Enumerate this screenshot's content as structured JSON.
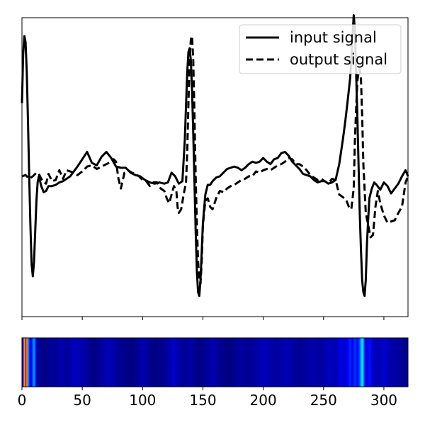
{
  "chart_data": [
    {
      "type": "line",
      "title": "",
      "xlabel": "",
      "ylabel": "",
      "xlim": [
        0,
        320
      ],
      "ylim": [
        -1.15,
        1.3
      ],
      "show_x_tick_labels": false,
      "show_y_ticks": false,
      "grid": false,
      "legend": {
        "placement": "top-right",
        "entries": [
          "input signal",
          "output signal"
        ]
      },
      "series": [
        {
          "name": "input signal",
          "style": "solid",
          "color": "#000000",
          "x": [
            0,
            1,
            2,
            3,
            4,
            5,
            6,
            7,
            8,
            9,
            10,
            11,
            12,
            13,
            14,
            16,
            18,
            20,
            22,
            25,
            28,
            31,
            34,
            37,
            40,
            43,
            46,
            50,
            54,
            58,
            62,
            66,
            70,
            74,
            78,
            82,
            86,
            90,
            94,
            98,
            102,
            106,
            110,
            114,
            118,
            121,
            124,
            127,
            130,
            133,
            135,
            136,
            137,
            138,
            139,
            140,
            141,
            142,
            143,
            144,
            145,
            146,
            147,
            148,
            149,
            150,
            152,
            154,
            156,
            158,
            161,
            164,
            167,
            170,
            173,
            176,
            179,
            182,
            185,
            188,
            191,
            194,
            197,
            200,
            203,
            206,
            209,
            212,
            215,
            218,
            221,
            224,
            227,
            230,
            233,
            236,
            239,
            242,
            245,
            248,
            251,
            254,
            257,
            260,
            263,
            266,
            268,
            270,
            272,
            273,
            274,
            275,
            276,
            277,
            278,
            279,
            280,
            281,
            282,
            283,
            284,
            285,
            286,
            287,
            288,
            290,
            292,
            294,
            297,
            300,
            303,
            306,
            309,
            312,
            315,
            318,
            320
          ],
          "y": [
            0.6,
            1.0,
            1.15,
            1.1,
            0.85,
            0.45,
            0.0,
            -0.4,
            -0.72,
            -0.82,
            -0.7,
            -0.45,
            -0.2,
            -0.05,
            0.0,
            -0.08,
            -0.13,
            -0.12,
            -0.08,
            -0.08,
            -0.07,
            -0.05,
            -0.04,
            -0.02,
            0.0,
            0.04,
            0.08,
            0.14,
            0.2,
            0.11,
            0.09,
            0.16,
            0.2,
            0.15,
            0.08,
            0.07,
            0.07,
            0.03,
            0.01,
            0.0,
            -0.03,
            -0.05,
            -0.06,
            -0.05,
            -0.06,
            -0.05,
            0.03,
            0.0,
            -0.06,
            -0.04,
            0.3,
            0.58,
            0.85,
            1.02,
            1.05,
            0.95,
            0.7,
            0.35,
            -0.05,
            -0.45,
            -0.78,
            -0.95,
            -0.98,
            -0.85,
            -0.62,
            -0.38,
            -0.15,
            -0.07,
            -0.07,
            -0.04,
            -0.01,
            0.0,
            0.03,
            0.06,
            0.07,
            0.08,
            0.07,
            0.05,
            0.07,
            0.1,
            0.12,
            0.11,
            0.12,
            0.15,
            0.12,
            0.1,
            0.14,
            0.15,
            0.19,
            0.2,
            0.17,
            0.12,
            0.09,
            0.06,
            0.02,
            0.01,
            0.0,
            -0.03,
            -0.05,
            -0.04,
            -0.04,
            -0.06,
            -0.05,
            -0.03,
            0.1,
            0.3,
            0.45,
            0.62,
            0.8,
            0.95,
            1.15,
            1.32,
            1.2,
            0.85,
            0.5,
            0.1,
            -0.3,
            -0.6,
            -0.85,
            -0.95,
            -0.98,
            -0.85,
            -0.55,
            -0.35,
            -0.18,
            -0.1,
            -0.05,
            -0.07,
            -0.11,
            -0.05,
            -0.08,
            -0.14,
            -0.1,
            -0.06,
            0.0,
            0.05,
            0.0
          ]
        },
        {
          "name": "output signal",
          "style": "dashed",
          "color": "#000000",
          "x": [
            0,
            3,
            6,
            9,
            12,
            14,
            16,
            18,
            20,
            22,
            25,
            28,
            31,
            34,
            37,
            40,
            43,
            46,
            50,
            54,
            58,
            62,
            66,
            70,
            74,
            76,
            78,
            80,
            82,
            85,
            88,
            91,
            94,
            97,
            100,
            103,
            106,
            109,
            112,
            115,
            118,
            120,
            122,
            124,
            126,
            128,
            129,
            130,
            132,
            134,
            136,
            137,
            138,
            139,
            140,
            141,
            142,
            143,
            144,
            145,
            146,
            147,
            148,
            149,
            150,
            152,
            154,
            156,
            158,
            161,
            164,
            167,
            170,
            173,
            176,
            179,
            182,
            185,
            188,
            191,
            194,
            197,
            200,
            203,
            206,
            209,
            212,
            215,
            218,
            221,
            224,
            227,
            230,
            233,
            236,
            239,
            242,
            245,
            248,
            251,
            254,
            257,
            260,
            263,
            266,
            269,
            271,
            273,
            275,
            276,
            277,
            278,
            279,
            280,
            281,
            282,
            283,
            285,
            287,
            289,
            291,
            293,
            295,
            297,
            300,
            303,
            306,
            309,
            312,
            315,
            318,
            320
          ],
          "y": [
            0.0,
            0.01,
            -0.02,
            0.0,
            0.03,
            0.02,
            -0.02,
            -0.05,
            -0.06,
            0.02,
            -0.04,
            -0.03,
            0.05,
            -0.02,
            0.05,
            0.04,
            0.03,
            0.01,
            0.04,
            0.08,
            0.09,
            0.06,
            0.08,
            0.1,
            0.12,
            0.14,
            0.12,
            -0.02,
            -0.1,
            0.03,
            0.05,
            0.03,
            0.02,
            0.0,
            -0.03,
            -0.04,
            -0.08,
            -0.05,
            -0.05,
            -0.1,
            -0.12,
            -0.18,
            -0.22,
            -0.15,
            -0.08,
            -0.12,
            -0.25,
            -0.3,
            -0.27,
            -0.15,
            -0.05,
            0.2,
            0.6,
            0.95,
            1.12,
            1.15,
            0.95,
            0.5,
            0.0,
            -0.4,
            -0.7,
            -0.85,
            -0.88,
            -0.7,
            -0.4,
            -0.2,
            -0.18,
            -0.25,
            -0.27,
            -0.18,
            -0.12,
            -0.13,
            -0.1,
            -0.08,
            -0.07,
            -0.05,
            -0.03,
            -0.02,
            0.0,
            0.0,
            0.04,
            0.03,
            0.05,
            0.06,
            0.05,
            0.07,
            0.09,
            0.1,
            0.12,
            0.15,
            0.14,
            0.1,
            0.1,
            0.08,
            0.05,
            0.01,
            -0.01,
            -0.03,
            -0.02,
            -0.04,
            -0.06,
            -0.02,
            -0.03,
            -0.15,
            -0.17,
            -0.2,
            -0.25,
            -0.27,
            -0.1,
            0.3,
            0.55,
            0.78,
            0.85,
            0.88,
            0.8,
            0.5,
            0.1,
            -0.3,
            -0.4,
            -0.5,
            -0.48,
            -0.25,
            -0.12,
            -0.22,
            -0.32,
            -0.38,
            -0.37,
            -0.36,
            -0.3,
            -0.25,
            -0.05,
            0.0
          ]
        }
      ]
    },
    {
      "type": "heatmap",
      "title": "",
      "xlabel": "",
      "ylabel": "",
      "xlim": [
        0,
        320
      ],
      "show_y_ticks": false,
      "colormap": [
        "#00007f",
        "#0000ff",
        "#007fff",
        "#00ffff",
        "#7fff7f",
        "#ffff00",
        "#ff7f00",
        "#ff0000",
        "#7f0000"
      ],
      "x_ticks": [
        0,
        50,
        100,
        150,
        200,
        250,
        300
      ],
      "x_tick_labels": [
        "0",
        "50",
        "100",
        "150",
        "200",
        "250",
        "300"
      ],
      "x": [
        0,
        1,
        2,
        3,
        4,
        5,
        6,
        7,
        8,
        9,
        10,
        11,
        12,
        14,
        18,
        24,
        28,
        32,
        38,
        42,
        48,
        54,
        60,
        66,
        72,
        80,
        92,
        100,
        110,
        118,
        122,
        126,
        128,
        134,
        140,
        146,
        152,
        158,
        164,
        172,
        180,
        190,
        200,
        210,
        220,
        230,
        240,
        248,
        254,
        260,
        264,
        268,
        270,
        272,
        274,
        276,
        278,
        280,
        281,
        282,
        283,
        284,
        285,
        286,
        288,
        290,
        292,
        296,
        300,
        306,
        312,
        318
      ],
      "values": [
        0.08,
        0.15,
        0.7,
        0.92,
        0.75,
        0.3,
        0.18,
        0.1,
        0.12,
        0.22,
        0.28,
        0.2,
        0.08,
        0.02,
        0.0,
        0.03,
        0.02,
        0.05,
        0.02,
        0.06,
        0.05,
        0.03,
        0.0,
        0.03,
        0.06,
        0.02,
        0.0,
        0.05,
        0.0,
        0.02,
        0.04,
        0.08,
        0.05,
        0.02,
        0.04,
        0.0,
        0.02,
        0.05,
        0.02,
        0.0,
        0.03,
        0.02,
        0.06,
        0.03,
        0.05,
        0.02,
        0.04,
        0.03,
        0.06,
        0.05,
        0.1,
        0.08,
        0.12,
        0.16,
        0.1,
        0.18,
        0.12,
        0.2,
        0.3,
        0.36,
        0.3,
        0.16,
        0.08,
        0.1,
        0.14,
        0.1,
        0.06,
        0.05,
        0.08,
        0.04,
        0.03,
        0.02
      ]
    }
  ]
}
